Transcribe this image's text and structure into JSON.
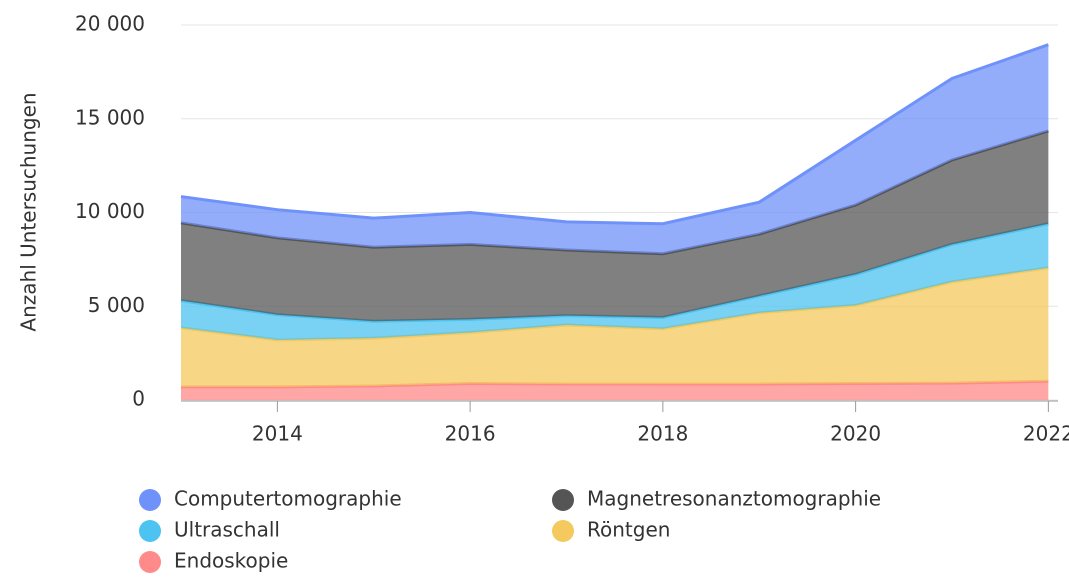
{
  "chart_data": {
    "type": "stacked_area",
    "y_label": "Anzahl Untersuchungen",
    "x": [
      2013,
      2014,
      2015,
      2016,
      2017,
      2018,
      2019,
      2020,
      2021,
      2022
    ],
    "xlim": [
      2013,
      2022.1
    ],
    "xticks": [
      2014,
      2016,
      2018,
      2020,
      2022
    ],
    "ylim": [
      0,
      20000
    ],
    "yticks": [
      0,
      {
        "value": 5000,
        "label": "5 000"
      },
      {
        "value": 10000,
        "label": "10 000"
      },
      {
        "value": 15000,
        "label": "15 000"
      },
      {
        "value": 20000,
        "label": "20 000"
      }
    ],
    "grid": true,
    "legend": "bottom",
    "series": [
      {
        "name": "Computertomographie",
        "color": "#6f92fa",
        "values": [
          1400,
          1500,
          1550,
          1700,
          1500,
          1600,
          1700,
          3450,
          4350,
          4600
        ]
      },
      {
        "name": "Magnetresonanztomographie",
        "color": "#555555",
        "values": [
          4150,
          4100,
          3950,
          4000,
          3500,
          3400,
          3300,
          3700,
          4500,
          4950
        ]
      },
      {
        "name": "Ultraschall",
        "color": "#4cc3f0",
        "values": [
          1450,
          1350,
          900,
          700,
          500,
          600,
          900,
          1650,
          2000,
          2350
        ]
      },
      {
        "name": "Röntgen",
        "color": "#f4c95d",
        "values": [
          3150,
          2500,
          2550,
          2720,
          3150,
          2950,
          3800,
          4170,
          5400,
          6050
        ]
      },
      {
        "name": "Endoskopie",
        "color": "#ff8a8a",
        "values": [
          700,
          700,
          750,
          880,
          850,
          850,
          850,
          880,
          900,
          1000
        ]
      }
    ]
  }
}
